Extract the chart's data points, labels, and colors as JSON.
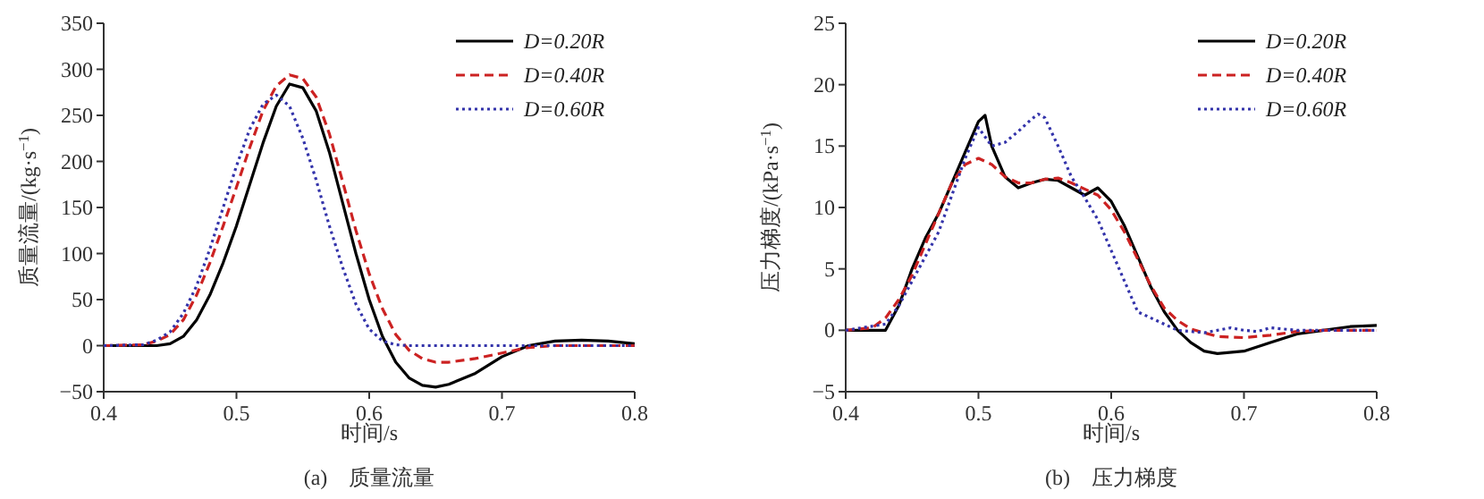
{
  "chart_data": [
    {
      "type": "line",
      "title": "(a)　质量流量",
      "xlabel": "时间/s",
      "ylabel": "质量流量/(kg·s$^{−1}$)",
      "xlim": [
        0.4,
        0.8
      ],
      "xticks": [
        0.4,
        0.5,
        0.6,
        0.7,
        0.8
      ],
      "ylim": [
        -50,
        350
      ],
      "yticks": [
        -50,
        0,
        50,
        100,
        150,
        200,
        250,
        300,
        350
      ],
      "grid": false,
      "legend": "top right",
      "marker": "none",
      "series": [
        {
          "name": "D=0.20R",
          "color": "#000000",
          "line_style": "solid",
          "x": [
            0.4,
            0.44,
            0.45,
            0.46,
            0.47,
            0.48,
            0.49,
            0.5,
            0.51,
            0.52,
            0.53,
            0.54,
            0.55,
            0.56,
            0.57,
            0.58,
            0.59,
            0.6,
            0.61,
            0.62,
            0.63,
            0.64,
            0.65,
            0.66,
            0.68,
            0.7,
            0.72,
            0.74,
            0.76,
            0.78,
            0.8
          ],
          "values": [
            0,
            0,
            2,
            10,
            28,
            55,
            90,
            130,
            175,
            220,
            260,
            284,
            280,
            255,
            210,
            155,
            100,
            50,
            10,
            -18,
            -35,
            -43,
            -45,
            -42,
            -30,
            -12,
            0,
            5,
            6,
            5,
            2
          ]
        },
        {
          "name": "D=0.40R",
          "color": "#cc2222",
          "line_style": "dashed",
          "x": [
            0.4,
            0.43,
            0.44,
            0.45,
            0.46,
            0.47,
            0.48,
            0.49,
            0.5,
            0.51,
            0.52,
            0.53,
            0.54,
            0.55,
            0.56,
            0.57,
            0.58,
            0.59,
            0.6,
            0.61,
            0.62,
            0.63,
            0.64,
            0.65,
            0.66,
            0.68,
            0.7,
            0.72,
            0.74,
            0.8
          ],
          "values": [
            0,
            1,
            5,
            12,
            28,
            55,
            90,
            130,
            172,
            215,
            255,
            282,
            294,
            290,
            270,
            230,
            178,
            125,
            78,
            40,
            12,
            -5,
            -14,
            -18,
            -18,
            -14,
            -8,
            -2,
            0,
            0
          ]
        },
        {
          "name": "D=0.60R",
          "color": "#3333aa",
          "line_style": "dotted",
          "x": [
            0.4,
            0.43,
            0.44,
            0.45,
            0.46,
            0.47,
            0.48,
            0.49,
            0.5,
            0.51,
            0.52,
            0.53,
            0.54,
            0.55,
            0.56,
            0.57,
            0.58,
            0.59,
            0.6,
            0.61,
            0.62,
            0.63,
            0.8
          ],
          "values": [
            0,
            1,
            6,
            15,
            35,
            65,
            105,
            150,
            195,
            235,
            262,
            272,
            260,
            225,
            180,
            130,
            85,
            45,
            18,
            5,
            1,
            0,
            0
          ]
        }
      ]
    },
    {
      "type": "line",
      "title": "(b)　压力梯度",
      "xlabel": "时间/s",
      "ylabel": "压力梯度/(kPa·s$^{−1}$)",
      "xlim": [
        0.4,
        0.8
      ],
      "xticks": [
        0.4,
        0.5,
        0.6,
        0.7,
        0.8
      ],
      "ylim": [
        -5,
        25
      ],
      "yticks": [
        -5,
        0,
        5,
        10,
        15,
        20,
        25
      ],
      "grid": false,
      "legend": "top right",
      "marker": "none",
      "series": [
        {
          "name": "D=0.20R",
          "color": "#000000",
          "line_style": "solid",
          "x": [
            0.4,
            0.43,
            0.44,
            0.45,
            0.46,
            0.47,
            0.48,
            0.49,
            0.5,
            0.505,
            0.51,
            0.52,
            0.53,
            0.54,
            0.55,
            0.56,
            0.57,
            0.58,
            0.59,
            0.6,
            0.61,
            0.62,
            0.63,
            0.64,
            0.65,
            0.66,
            0.67,
            0.68,
            0.7,
            0.72,
            0.74,
            0.76,
            0.78,
            0.8
          ],
          "values": [
            0,
            0,
            2,
            5,
            7.5,
            9.5,
            12,
            14.5,
            17,
            17.5,
            15,
            12.5,
            11.6,
            12,
            12.3,
            12.2,
            11.6,
            11,
            11.6,
            10.5,
            8.5,
            6,
            3.5,
            1.5,
            0,
            -1,
            -1.7,
            -1.9,
            -1.7,
            -1,
            -0.3,
            0,
            0.3,
            0.4
          ]
        },
        {
          "name": "D=0.40R",
          "color": "#cc2222",
          "line_style": "dashed",
          "x": [
            0.4,
            0.42,
            0.43,
            0.44,
            0.45,
            0.46,
            0.47,
            0.48,
            0.49,
            0.5,
            0.51,
            0.52,
            0.53,
            0.54,
            0.55,
            0.56,
            0.57,
            0.58,
            0.59,
            0.6,
            0.61,
            0.62,
            0.63,
            0.64,
            0.65,
            0.66,
            0.68,
            0.7,
            0.72,
            0.74,
            0.76,
            0.8
          ],
          "values": [
            0,
            0.2,
            1,
            2.5,
            4.5,
            7,
            9.5,
            12,
            13.5,
            14,
            13.5,
            12.5,
            12,
            12,
            12.3,
            12.4,
            12,
            11.5,
            11,
            9.8,
            8,
            5.8,
            3.6,
            1.8,
            0.8,
            0.1,
            -0.5,
            -0.6,
            -0.4,
            -0.1,
            0,
            0
          ]
        },
        {
          "name": "D=0.60R",
          "color": "#3333aa",
          "line_style": "dotted",
          "x": [
            0.4,
            0.43,
            0.44,
            0.45,
            0.46,
            0.47,
            0.48,
            0.49,
            0.5,
            0.51,
            0.52,
            0.53,
            0.54,
            0.545,
            0.55,
            0.56,
            0.57,
            0.58,
            0.59,
            0.6,
            0.61,
            0.62,
            0.63,
            0.64,
            0.65,
            0.67,
            0.68,
            0.69,
            0.7,
            0.71,
            0.72,
            0.74,
            0.76,
            0.8
          ],
          "values": [
            0,
            0.5,
            2,
            4,
            6,
            8,
            11,
            14,
            16.5,
            15,
            15.3,
            16.2,
            17.2,
            17.6,
            17.3,
            15,
            12.5,
            10.8,
            9,
            6.5,
            4,
            1.5,
            1,
            0.5,
            0,
            -0.2,
            0,
            0.2,
            0,
            -0.1,
            0.2,
            0,
            0,
            0
          ]
        }
      ]
    }
  ]
}
